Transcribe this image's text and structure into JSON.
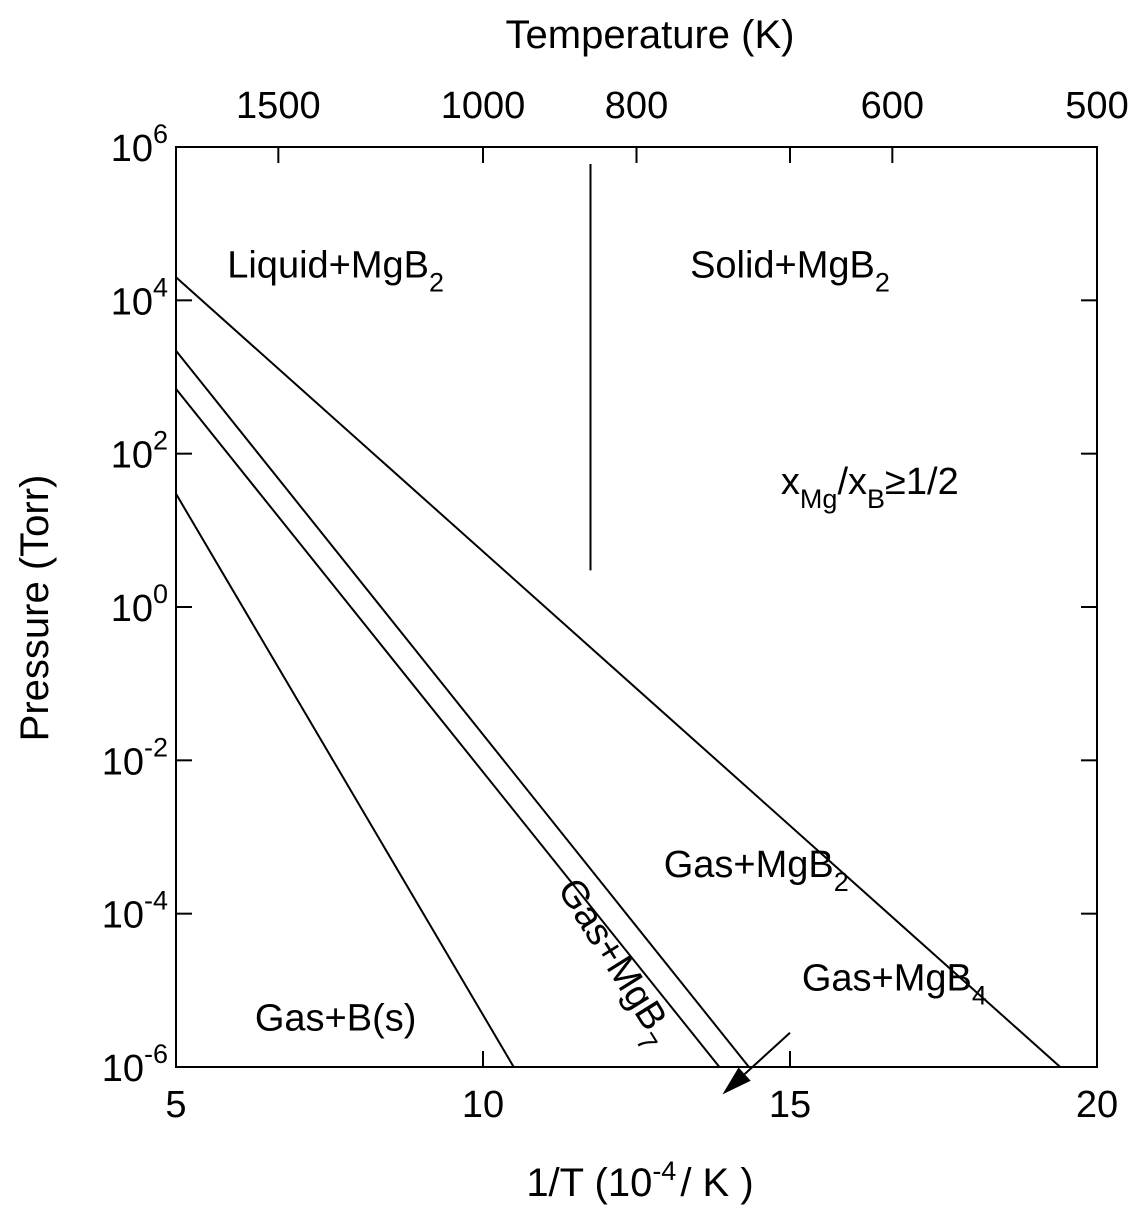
{
  "chart_data": {
    "type": "line",
    "title": "",
    "x_axis": {
      "label_main": "1/T (10",
      "label_exp": "-4",
      "label_tail": "/ K )",
      "range": [
        5,
        20
      ],
      "ticks": [
        5,
        10,
        15,
        20
      ],
      "tick_labels": [
        "5",
        "10",
        "15",
        "20"
      ]
    },
    "top_axis": {
      "label": "Temperature (K)",
      "ticks": [
        1500,
        1000,
        800,
        600,
        500
      ],
      "tick_labels": [
        "1500",
        "1000",
        "800",
        "600",
        "500"
      ]
    },
    "y_axis": {
      "label": "Pressure (Torr)",
      "scale": "log",
      "range": [
        1e-06,
        1000000.0
      ],
      "ticks": [
        1e-06,
        0.0001,
        0.01,
        1.0,
        100.0,
        10000.0,
        1000000.0
      ],
      "tick_base": "10",
      "tick_exponents": [
        "-6",
        "-4",
        "-2",
        "0",
        "2",
        "4",
        "6"
      ]
    },
    "grid": false,
    "series": [
      {
        "x": [
          5.0,
          19.4
        ],
        "y": [
          20000,
          1e-06
        ]
      },
      {
        "x": [
          5.0,
          14.33
        ],
        "y": [
          2200,
          1e-06
        ]
      },
      {
        "x": [
          5.0,
          13.85
        ],
        "y": [
          700,
          1e-06
        ]
      },
      {
        "x": [
          5.0,
          10.5
        ],
        "y": [
          30,
          1e-06
        ]
      },
      {
        "x": [
          11.75,
          11.75
        ],
        "y": [
          3,
          600000
        ]
      }
    ],
    "annotations": [
      {
        "text": "Liquid+MgB",
        "sub": "2",
        "x": 7.6,
        "y": 20000
      },
      {
        "text": "Solid+MgB",
        "sub": "2",
        "x": 15.0,
        "y": 20000
      },
      {
        "text": "x",
        "sub": "Mg",
        "text2": "/x",
        "sub2": "B",
        "text3": "≥1/2",
        "x": 16.3,
        "y": 30
      },
      {
        "text": "Gas+MgB",
        "sub": "2",
        "x": 14.45,
        "y": 0.0003
      },
      {
        "text": "Gas+MgB",
        "sub": "7",
        "x": 12.0,
        "y": 2e-05,
        "rotate": 58
      },
      {
        "text": "Gas+MgB",
        "sub": "4",
        "x": 16.7,
        "y": 1e-05
      },
      {
        "text": "Gas+B(s)",
        "x": 7.6,
        "y": 3e-06
      }
    ],
    "arrow": {
      "from": [
        15.0,
        2.8e-06
      ],
      "to": [
        13.9,
        4.4e-07
      ]
    }
  }
}
